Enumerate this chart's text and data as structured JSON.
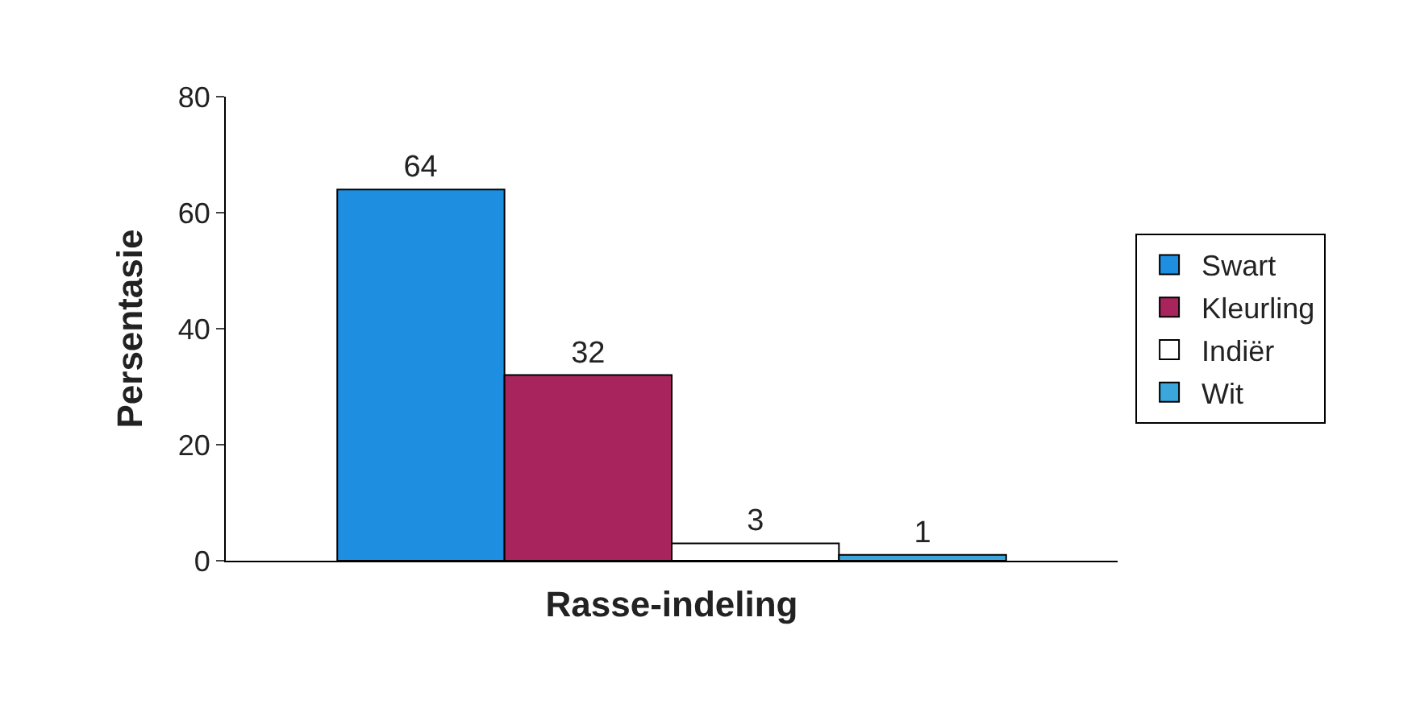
{
  "chart_data": {
    "type": "bar",
    "xlabel": "Rasse-indeling",
    "ylabel": "Persentasie",
    "categories": [
      null
    ],
    "series": [
      {
        "name": "Swart",
        "color": "#1e8fe0",
        "values": [
          64
        ]
      },
      {
        "name": "Kleurling",
        "color": "#a8245c",
        "values": [
          32
        ]
      },
      {
        "name": "Indiër",
        "color": "#ffffff",
        "values": [
          3
        ]
      },
      {
        "name": "Wit",
        "color": "#3aa6dc",
        "values": [
          1
        ]
      }
    ],
    "ylim": [
      0,
      80
    ],
    "yticks": [
      0,
      20,
      40,
      60,
      80
    ],
    "data_labels": true,
    "legend": "right"
  }
}
